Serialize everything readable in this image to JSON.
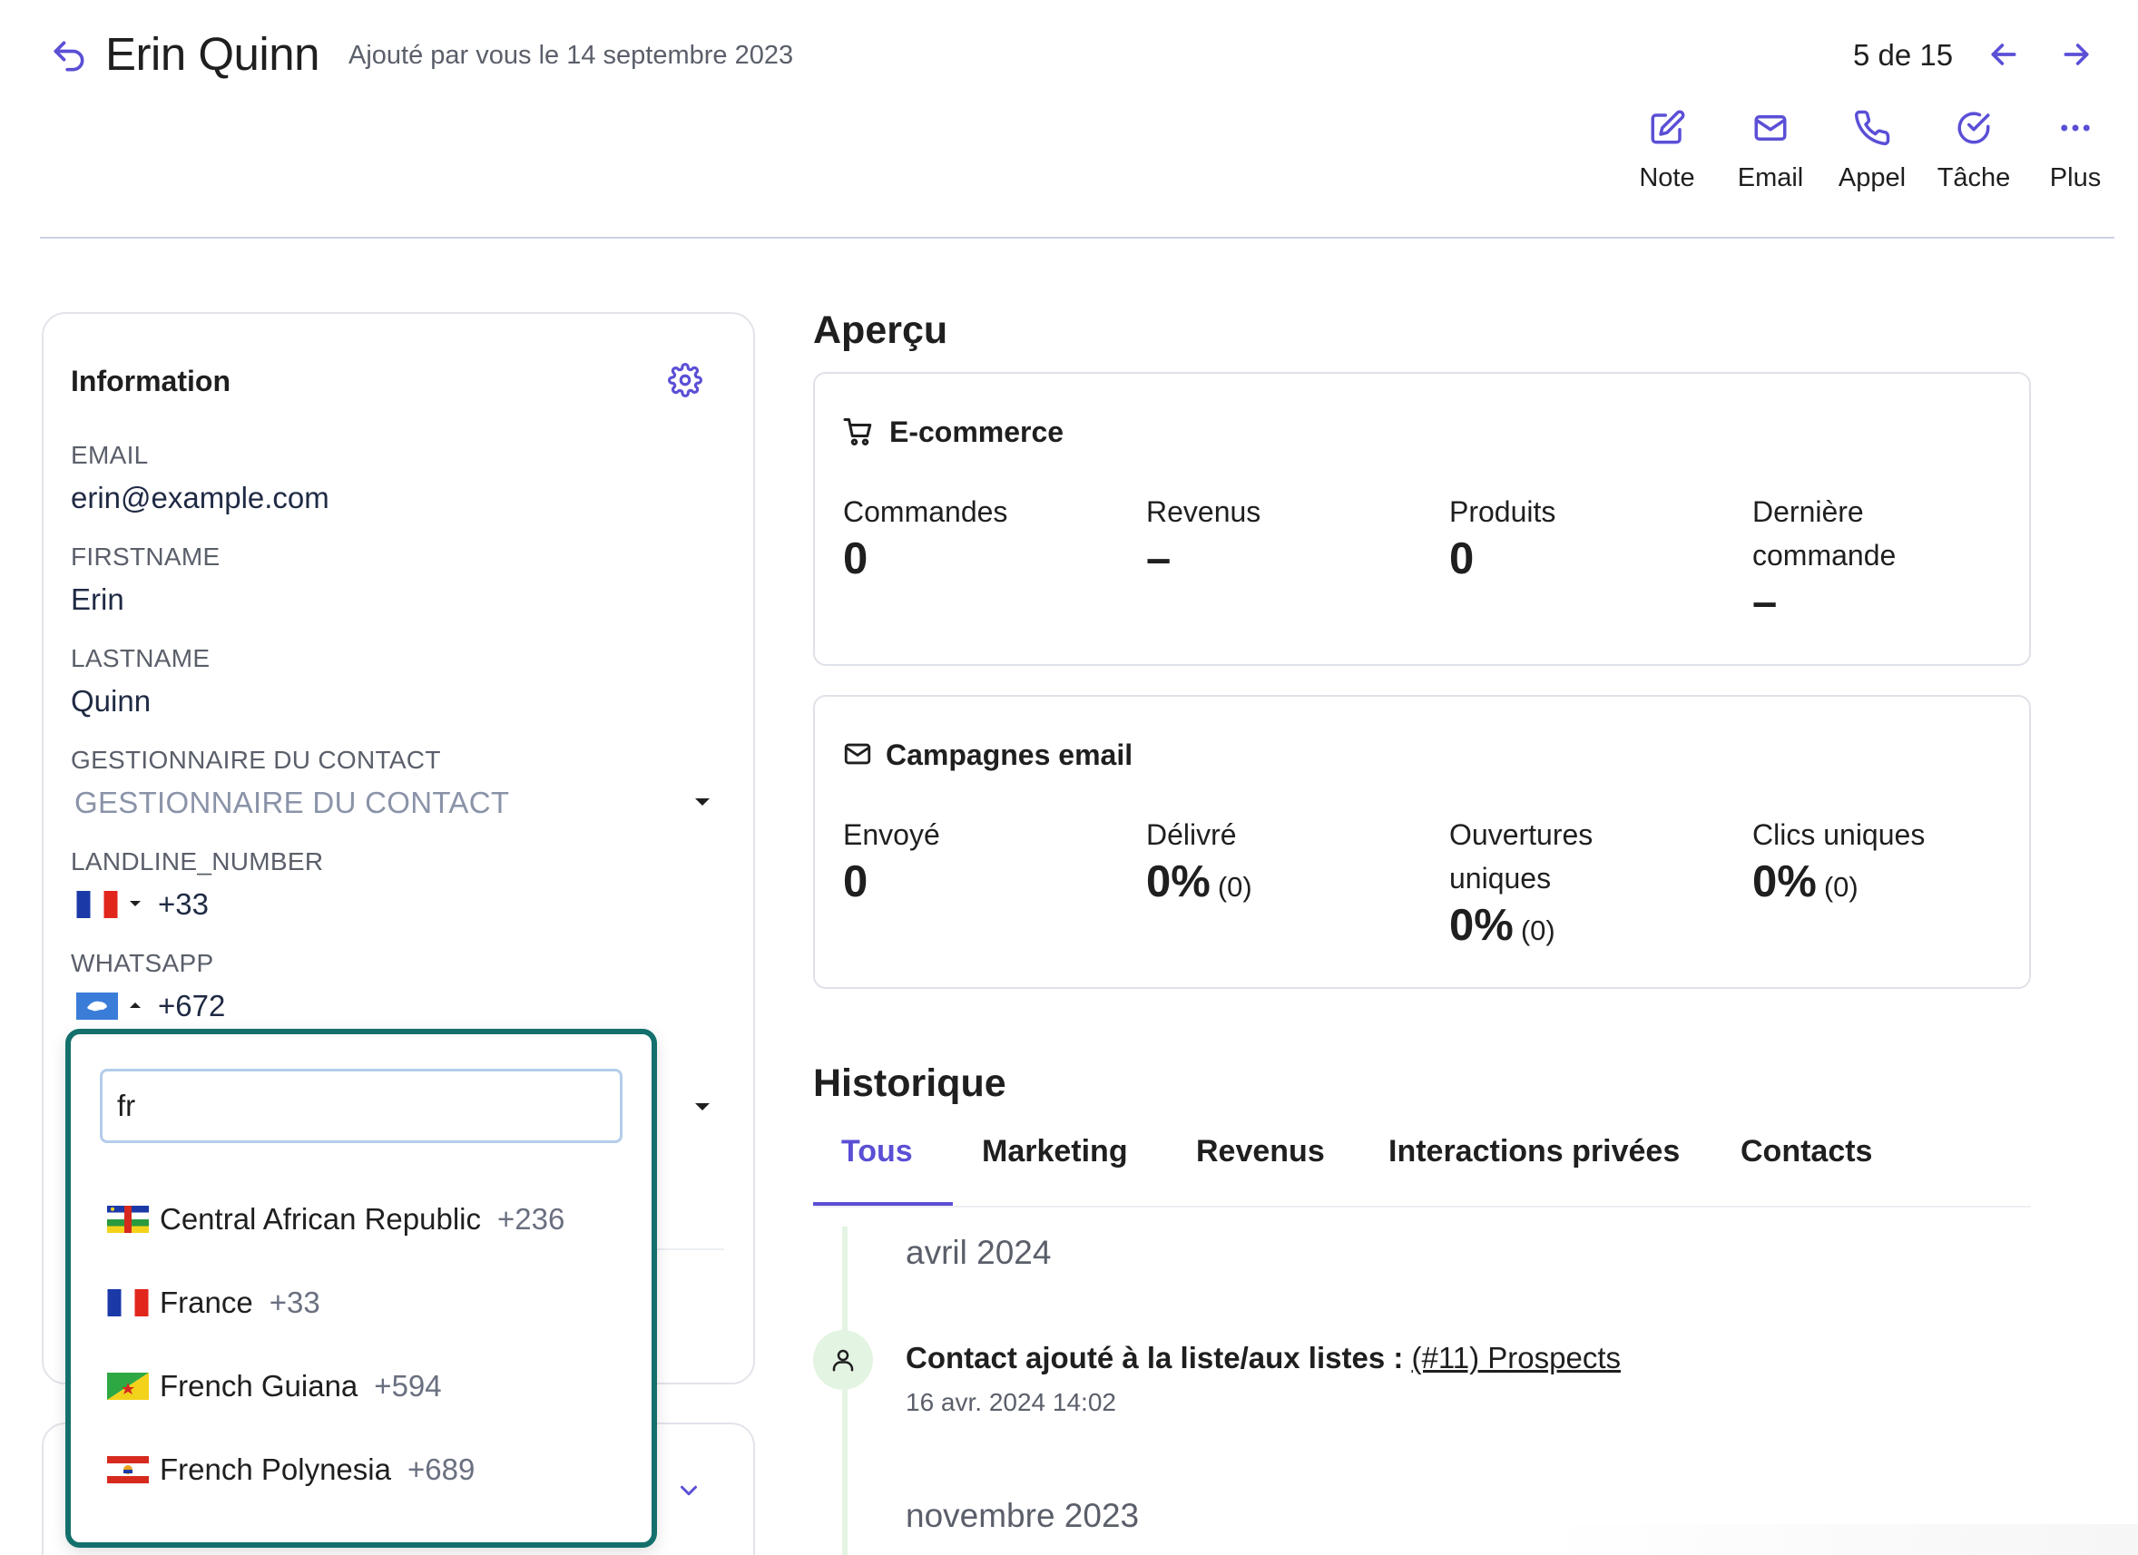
{
  "header": {
    "name": "Erin Quinn",
    "added": "Ajouté par vous le 14 septembre 2023",
    "pager": "5 de 15"
  },
  "actions": [
    {
      "label": "Note",
      "icon": "edit-icon"
    },
    {
      "label": "Email",
      "icon": "mail-icon"
    },
    {
      "label": "Appel",
      "icon": "phone-icon"
    },
    {
      "label": "Tâche",
      "icon": "check-circle-icon"
    },
    {
      "label": "Plus",
      "icon": "more-icon"
    }
  ],
  "info": {
    "title": "Information",
    "email_label": "EMAIL",
    "email_value": "erin@example.com",
    "firstname_label": "FIRSTNAME",
    "firstname_value": "Erin",
    "lastname_label": "LASTNAME",
    "lastname_value": "Quinn",
    "manager_label": "GESTIONNAIRE DU CONTACT",
    "manager_placeholder": "GESTIONNAIRE DU CONTACT",
    "landline_label": "LANDLINE_NUMBER",
    "landline_code": "+33",
    "whatsapp_label": "WHATSAPP",
    "whatsapp_code": "+672"
  },
  "country_dropdown": {
    "search_value": "fr",
    "options": [
      {
        "name": "Central African Republic",
        "code": "+236"
      },
      {
        "name": "France",
        "code": "+33"
      },
      {
        "name": "French Guiana",
        "code": "+594"
      },
      {
        "name": "French Polynesia",
        "code": "+689"
      }
    ]
  },
  "overview": {
    "title": "Aperçu",
    "ecommerce": {
      "title": "E-commerce",
      "stats": [
        {
          "label": "Commandes",
          "value": "0"
        },
        {
          "label": "Revenus",
          "value": "–"
        },
        {
          "label": "Produits",
          "value": "0"
        },
        {
          "label": "Dernière commande",
          "value": "–"
        }
      ]
    },
    "campaigns": {
      "title": "Campagnes email",
      "stats": [
        {
          "label": "Envoyé",
          "value": "0",
          "sub": ""
        },
        {
          "label": "Délivré",
          "value": "0%",
          "sub": "(0)"
        },
        {
          "label": "Ouvertures uniques",
          "value": "0%",
          "sub": "(0)"
        },
        {
          "label": "Clics uniques",
          "value": "0%",
          "sub": "(0)"
        }
      ]
    }
  },
  "history": {
    "title": "Historique",
    "tabs": [
      "Tous",
      "Marketing",
      "Revenus",
      "Interactions privées",
      "Contacts"
    ],
    "month1": "avril 2024",
    "event_text": "Contact ajouté à la liste/aux listes :",
    "event_link": "(#11) Prospects",
    "event_date": "16 avr. 2024 14:02",
    "month2": "novembre 2023"
  },
  "colors": {
    "accent": "#5b4fd6",
    "popup_border": "#13706c",
    "timeline": "#e3f4e3"
  }
}
